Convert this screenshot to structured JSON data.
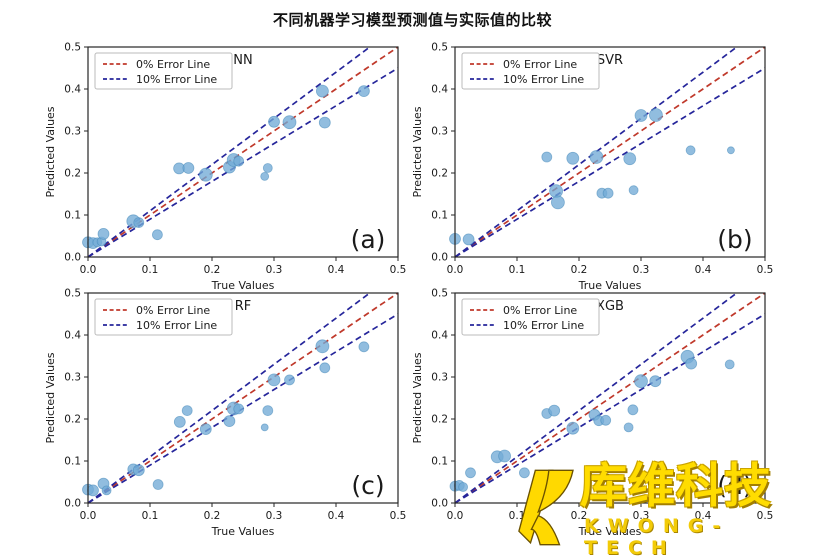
{
  "page": {
    "title": "不同机器学习模型预测值与实际值的比较"
  },
  "watermark": {
    "cn": "库维科技",
    "en": "KWONG-TECH",
    "logo_color": "#ffd900",
    "logo_outline": "#6b5200"
  },
  "style": {
    "point_color": "#72abd6",
    "point_edge": "#4286b8",
    "point_opacity": 0.78,
    "zero_line_color": "#c0392b",
    "ten_line_color": "#26269b",
    "axis_color": "#262626",
    "legend_border": "#bbbbbb"
  },
  "chart_data": [
    {
      "type": "scatter",
      "title": "NN",
      "panel_label": "(a)",
      "xlabel": "True Values",
      "ylabel": "Predicted Values",
      "xlim": [
        0.0,
        0.5
      ],
      "ylim": [
        0.0,
        0.5
      ],
      "xticks": [
        0.0,
        0.1,
        0.2,
        0.3,
        0.4,
        0.5
      ],
      "yticks": [
        0.0,
        0.1,
        0.2,
        0.3,
        0.4,
        0.5
      ],
      "legend": [
        "0% Error Line",
        "10% Error Line"
      ],
      "lines": [
        {
          "slope": 1.0,
          "role": "zero"
        },
        {
          "slope": 1.1,
          "role": "ten"
        },
        {
          "slope": 0.9,
          "role": "ten"
        }
      ],
      "points": [
        [
          0.0,
          0.035,
          5.5
        ],
        [
          0.008,
          0.033,
          5.5
        ],
        [
          0.015,
          0.035,
          4.5
        ],
        [
          0.022,
          0.037,
          4.5
        ],
        [
          0.025,
          0.055,
          5.5
        ],
        [
          0.073,
          0.085,
          6.5
        ],
        [
          0.082,
          0.082,
          5.0
        ],
        [
          0.112,
          0.053,
          5.0
        ],
        [
          0.147,
          0.211,
          5.5
        ],
        [
          0.162,
          0.212,
          5.5
        ],
        [
          0.19,
          0.196,
          6.5
        ],
        [
          0.228,
          0.214,
          6.0
        ],
        [
          0.235,
          0.231,
          6.5
        ],
        [
          0.243,
          0.228,
          5.0
        ],
        [
          0.285,
          0.192,
          4.0
        ],
        [
          0.29,
          0.212,
          4.5
        ],
        [
          0.3,
          0.322,
          5.5
        ],
        [
          0.325,
          0.321,
          6.5
        ],
        [
          0.378,
          0.395,
          6.0
        ],
        [
          0.382,
          0.32,
          5.5
        ],
        [
          0.445,
          0.395,
          5.5
        ]
      ]
    },
    {
      "type": "scatter",
      "title": "SVR",
      "panel_label": "(b)",
      "xlabel": "True Values",
      "ylabel": "Predicted Values",
      "xlim": [
        0.0,
        0.5
      ],
      "ylim": [
        0.0,
        0.5
      ],
      "xticks": [
        0.0,
        0.1,
        0.2,
        0.3,
        0.4,
        0.5
      ],
      "yticks": [
        0.0,
        0.1,
        0.2,
        0.3,
        0.4,
        0.5
      ],
      "legend": [
        "0% Error Line",
        "10% Error Line"
      ],
      "lines": [
        {
          "slope": 1.0,
          "role": "zero"
        },
        {
          "slope": 1.1,
          "role": "ten"
        },
        {
          "slope": 0.9,
          "role": "ten"
        }
      ],
      "points": [
        [
          0.0,
          0.043,
          5.5
        ],
        [
          0.022,
          0.042,
          5.5
        ],
        [
          0.148,
          0.238,
          5.0
        ],
        [
          0.163,
          0.157,
          6.5
        ],
        [
          0.166,
          0.13,
          6.5
        ],
        [
          0.19,
          0.235,
          6.0
        ],
        [
          0.228,
          0.238,
          6.5
        ],
        [
          0.237,
          0.152,
          5.0
        ],
        [
          0.247,
          0.152,
          5.0
        ],
        [
          0.282,
          0.234,
          6.0
        ],
        [
          0.288,
          0.159,
          4.5
        ],
        [
          0.3,
          0.337,
          6.0
        ],
        [
          0.324,
          0.338,
          6.5
        ],
        [
          0.38,
          0.254,
          4.5
        ],
        [
          0.445,
          0.254,
          3.5
        ]
      ]
    },
    {
      "type": "scatter",
      "title": "RF",
      "panel_label": "(c)",
      "xlabel": "True Values",
      "ylabel": "Predicted Values",
      "xlim": [
        0.0,
        0.5
      ],
      "ylim": [
        0.0,
        0.5
      ],
      "xticks": [
        0.0,
        0.1,
        0.2,
        0.3,
        0.4,
        0.5
      ],
      "yticks": [
        0.0,
        0.1,
        0.2,
        0.3,
        0.4,
        0.5
      ],
      "legend": [
        "0% Error Line",
        "10% Error Line"
      ],
      "lines": [
        {
          "slope": 1.0,
          "role": "zero"
        },
        {
          "slope": 1.1,
          "role": "ten"
        },
        {
          "slope": 0.9,
          "role": "ten"
        }
      ],
      "points": [
        [
          0.0,
          0.032,
          5.5
        ],
        [
          0.008,
          0.03,
          5.5
        ],
        [
          0.025,
          0.046,
          5.5
        ],
        [
          0.03,
          0.03,
          4.5
        ],
        [
          0.073,
          0.08,
          5.5
        ],
        [
          0.082,
          0.078,
          5.5
        ],
        [
          0.113,
          0.044,
          5.0
        ],
        [
          0.148,
          0.193,
          5.5
        ],
        [
          0.16,
          0.22,
          5.0
        ],
        [
          0.19,
          0.176,
          5.5
        ],
        [
          0.228,
          0.195,
          5.5
        ],
        [
          0.235,
          0.225,
          6.5
        ],
        [
          0.243,
          0.224,
          5.0
        ],
        [
          0.285,
          0.18,
          3.5
        ],
        [
          0.29,
          0.22,
          5.0
        ],
        [
          0.3,
          0.293,
          6.0
        ],
        [
          0.325,
          0.293,
          5.0
        ],
        [
          0.378,
          0.373,
          6.5
        ],
        [
          0.382,
          0.322,
          5.0
        ],
        [
          0.445,
          0.372,
          5.0
        ]
      ]
    },
    {
      "type": "scatter",
      "title": "XGB",
      "panel_label": "(d)",
      "xlabel": "True Values",
      "ylabel": "Predicted Values",
      "xlim": [
        0.0,
        0.5
      ],
      "ylim": [
        0.0,
        0.5
      ],
      "xticks": [
        0.0,
        0.1,
        0.2,
        0.3,
        0.4,
        0.5
      ],
      "yticks": [
        0.0,
        0.1,
        0.2,
        0.3,
        0.4,
        0.5
      ],
      "legend": [
        "0% Error Line",
        "10% Error Line"
      ],
      "lines": [
        {
          "slope": 1.0,
          "role": "zero"
        },
        {
          "slope": 1.1,
          "role": "ten"
        },
        {
          "slope": 0.9,
          "role": "ten"
        }
      ],
      "points": [
        [
          0.0,
          0.04,
          5.0
        ],
        [
          0.007,
          0.042,
          5.0
        ],
        [
          0.013,
          0.038,
          4.5
        ],
        [
          0.025,
          0.072,
          5.0
        ],
        [
          0.068,
          0.11,
          6.0
        ],
        [
          0.08,
          0.112,
          6.0
        ],
        [
          0.112,
          0.072,
          5.0
        ],
        [
          0.148,
          0.213,
          5.0
        ],
        [
          0.16,
          0.22,
          5.5
        ],
        [
          0.19,
          0.178,
          6.0
        ],
        [
          0.225,
          0.21,
          5.5
        ],
        [
          0.232,
          0.196,
          5.0
        ],
        [
          0.243,
          0.197,
          5.0
        ],
        [
          0.28,
          0.18,
          4.5
        ],
        [
          0.287,
          0.222,
          5.0
        ],
        [
          0.3,
          0.29,
          6.5
        ],
        [
          0.323,
          0.29,
          5.5
        ],
        [
          0.375,
          0.348,
          6.5
        ],
        [
          0.381,
          0.332,
          5.5
        ],
        [
          0.443,
          0.33,
          4.5
        ]
      ]
    }
  ]
}
